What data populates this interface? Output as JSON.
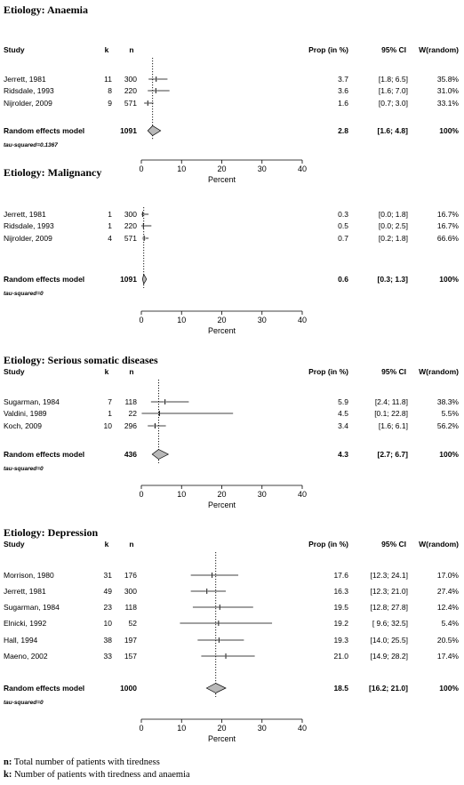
{
  "chart_data": [
    {
      "type": "forest",
      "title": "Etiology: Anaemia",
      "header": {
        "study": "Study",
        "k": "k",
        "n": "n",
        "prop": "Prop (in %)",
        "ci": "95% CI",
        "w": "W(random)"
      },
      "studies": [
        {
          "study": "Jerrett, 1981",
          "k": "11",
          "n": "300",
          "prop_text": "3.7",
          "ci_text": "[1.8; 6.5]",
          "w_text": "35.8%",
          "est": 3.7,
          "lo": 1.8,
          "hi": 6.5,
          "w": 35.8
        },
        {
          "study": "Ridsdale, 1993",
          "k": "8",
          "n": "220",
          "prop_text": "3.6",
          "ci_text": "[1.6; 7.0]",
          "w_text": "31.0%",
          "est": 3.6,
          "lo": 1.6,
          "hi": 7.0,
          "w": 31.0
        },
        {
          "study": "Nijrolder, 2009",
          "k": "9",
          "n": "571",
          "prop_text": "1.6",
          "ci_text": "[0.7; 3.0]",
          "w_text": "33.1%",
          "est": 1.6,
          "lo": 0.7,
          "hi": 3.0,
          "w": 33.1
        }
      ],
      "pooled": {
        "label": "Random effects model",
        "n": "1091",
        "prop_text": "2.8",
        "ci_text": "[1.6; 4.8]",
        "w_text": "100%",
        "est": 2.8,
        "lo": 1.6,
        "hi": 4.8
      },
      "tau": "tau-squared=0.1367",
      "xlabel": "Percent",
      "xticks": [
        "0",
        "10",
        "20",
        "30",
        "40"
      ],
      "xlim": [
        0,
        40
      ]
    },
    {
      "type": "forest",
      "title": "Etiology: Malignancy",
      "header": null,
      "studies": [
        {
          "study": "Jerrett, 1981",
          "k": "1",
          "n": "300",
          "prop_text": "0.3",
          "ci_text": "[0.0; 1.8]",
          "w_text": "16.7%",
          "est": 0.3,
          "lo": 0.0,
          "hi": 1.8,
          "w": 16.7
        },
        {
          "study": "Ridsdale, 1993",
          "k": "1",
          "n": "220",
          "prop_text": "0.5",
          "ci_text": "[0.0; 2.5]",
          "w_text": "16.7%",
          "est": 0.5,
          "lo": 0.0,
          "hi": 2.5,
          "w": 16.7
        },
        {
          "study": "Nijrolder, 2009",
          "k": "4",
          "n": "571",
          "prop_text": "0.7",
          "ci_text": "[0.2; 1.8]",
          "w_text": "66.6%",
          "est": 0.7,
          "lo": 0.2,
          "hi": 1.8,
          "w": 66.6
        }
      ],
      "pooled": {
        "label": "Random effects model",
        "n": "1091",
        "prop_text": "0.6",
        "ci_text": "[0.3; 1.3]",
        "w_text": "100%",
        "est": 0.6,
        "lo": 0.3,
        "hi": 1.3
      },
      "tau": "tau-squared=0",
      "xlabel": "Percent",
      "xticks": [
        "0",
        "10",
        "20",
        "30",
        "40"
      ],
      "xlim": [
        0,
        40
      ]
    },
    {
      "type": "forest",
      "title": "Etiology: Serious somatic diseases",
      "header": {
        "study": "Study",
        "k": "k",
        "n": "n",
        "prop": "Prop (in %)",
        "ci": "95% CI",
        "w": "W(random)"
      },
      "studies": [
        {
          "study": "Sugarman, 1984",
          "k": "7",
          "n": "118",
          "prop_text": "5.9",
          "ci_text": "[2.4; 11.8]",
          "w_text": "38.3%",
          "est": 5.9,
          "lo": 2.4,
          "hi": 11.8,
          "w": 38.3
        },
        {
          "study": "Valdini, 1989",
          "k": "1",
          "n": "22",
          "prop_text": "4.5",
          "ci_text": "[0.1; 22.8]",
          "w_text": "5.5%",
          "est": 4.5,
          "lo": 0.1,
          "hi": 22.8,
          "w": 5.5
        },
        {
          "study": "Koch, 2009",
          "k": "10",
          "n": "296",
          "prop_text": "3.4",
          "ci_text": "[1.6;  6.1]",
          "w_text": "56.2%",
          "est": 3.4,
          "lo": 1.6,
          "hi": 6.1,
          "w": 56.2
        }
      ],
      "pooled": {
        "label": "Random effects model",
        "n": "436",
        "prop_text": "4.3",
        "ci_text": "[2.7;  6.7]",
        "w_text": "100%",
        "est": 4.3,
        "lo": 2.7,
        "hi": 6.7
      },
      "tau": "tau-squared=0",
      "xlabel": "Percent",
      "xticks": [
        "0",
        "10",
        "20",
        "30",
        "40"
      ],
      "xlim": [
        0,
        40
      ]
    },
    {
      "type": "forest",
      "title": "Etiology: Depression",
      "header": {
        "study": "Study",
        "k": "k",
        "n": "n",
        "prop": "Prop (in %)",
        "ci": "95% CI",
        "w": "W(random)"
      },
      "studies": [
        {
          "study": "Morrison, 1980",
          "k": "31",
          "n": "176",
          "prop_text": "17.6",
          "ci_text": "[12.3; 24.1]",
          "w_text": "17.0%",
          "est": 17.6,
          "lo": 12.3,
          "hi": 24.1,
          "w": 17.0
        },
        {
          "study": "Jerrett, 1981",
          "k": "49",
          "n": "300",
          "prop_text": "16.3",
          "ci_text": "[12.3; 21.0]",
          "w_text": "27.4%",
          "est": 16.3,
          "lo": 12.3,
          "hi": 21.0,
          "w": 27.4
        },
        {
          "study": "Sugarman, 1984",
          "k": "23",
          "n": "118",
          "prop_text": "19.5",
          "ci_text": "[12.8; 27.8]",
          "w_text": "12.4%",
          "est": 19.5,
          "lo": 12.8,
          "hi": 27.8,
          "w": 12.4
        },
        {
          "study": "Elnicki, 1992",
          "k": "10",
          "n": "52",
          "prop_text": "19.2",
          "ci_text": "[ 9.6; 32.5]",
          "w_text": "5.4%",
          "est": 19.2,
          "lo": 9.6,
          "hi": 32.5,
          "w": 5.4
        },
        {
          "study": "Hall, 1994",
          "k": "38",
          "n": "197",
          "prop_text": "19.3",
          "ci_text": "[14.0; 25.5]",
          "w_text": "20.5%",
          "est": 19.3,
          "lo": 14.0,
          "hi": 25.5,
          "w": 20.5
        },
        {
          "study": "Maeno, 2002",
          "k": "33",
          "n": "157",
          "prop_text": "21.0",
          "ci_text": "[14.9; 28.2]",
          "w_text": "17.4%",
          "est": 21.0,
          "lo": 14.9,
          "hi": 28.2,
          "w": 17.4
        }
      ],
      "pooled": {
        "label": "Random effects model",
        "n": "1000",
        "prop_text": "18.5",
        "ci_text": "[16.2; 21.0]",
        "w_text": "100%",
        "est": 18.5,
        "lo": 16.2,
        "hi": 21.0
      },
      "tau": "tau-squared=0",
      "xlabel": "Percent",
      "xticks": [
        "0",
        "10",
        "20",
        "30",
        "40"
      ],
      "xlim": [
        0,
        40
      ]
    }
  ],
  "footnotes": {
    "n_def": "n: Total number of patients with tiredness",
    "k_def": "k: Number of patients with tiredness and anaemia"
  }
}
